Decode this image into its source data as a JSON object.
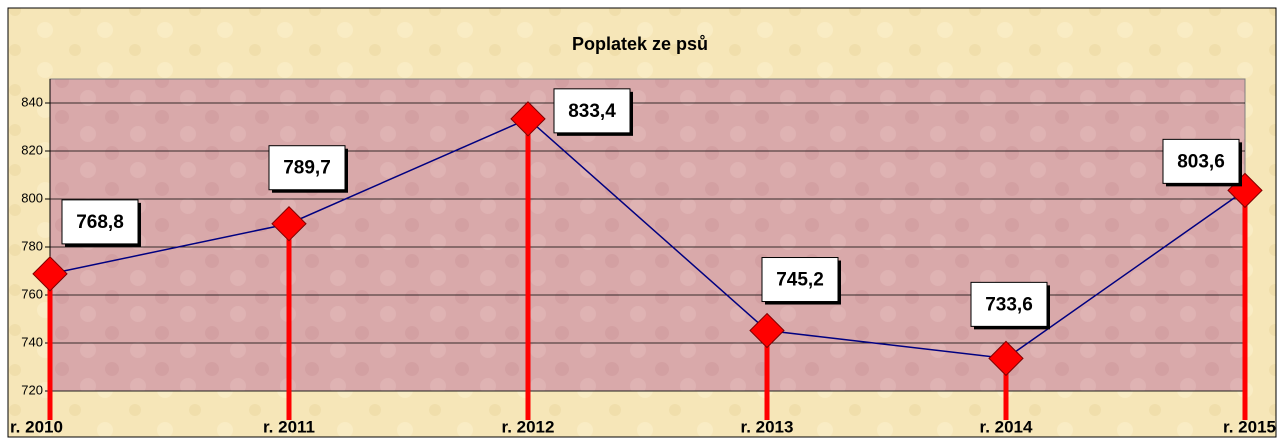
{
  "chart_data": {
    "type": "line",
    "title": "Poplatek ze psů",
    "categories": [
      "r. 2010",
      "r. 2011",
      "r. 2012",
      "r. 2013",
      "r. 2014",
      "r. 2015"
    ],
    "series": [
      {
        "name": "Poplatek ze psů",
        "color": "#000080",
        "marker_color": "#ff0000",
        "drop_line_color": "#ff0000",
        "values": [
          768.8,
          789.7,
          833.4,
          745.2,
          733.6,
          803.6
        ],
        "value_labels": [
          "768,8",
          "789,7",
          "833,4",
          "745,2",
          "733,6",
          "803,6"
        ]
      }
    ],
    "ylim": [
      720,
      850
    ],
    "yticks": [
      720,
      740,
      760,
      780,
      800,
      820,
      840
    ],
    "grid": true
  }
}
